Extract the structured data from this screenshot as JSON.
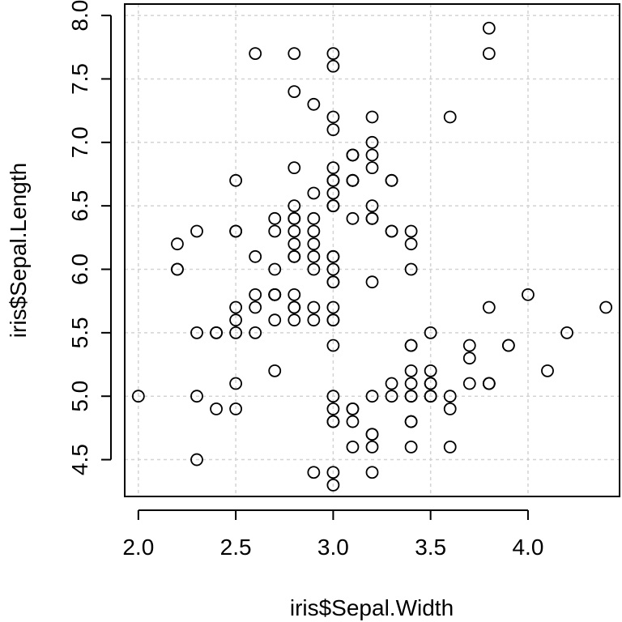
{
  "chart_data": {
    "type": "scatter",
    "title": "",
    "xlabel": "iris$Sepal.Width",
    "ylabel": "iris$Sepal.Length",
    "xlim": [
      1.93,
      4.47
    ],
    "ylim": [
      4.21,
      8.09
    ],
    "x_ticks": [
      "2.0",
      "2.5",
      "3.0",
      "3.5",
      "4.0"
    ],
    "y_ticks": [
      "4.5",
      "5.0",
      "5.5",
      "6.0",
      "6.5",
      "7.0",
      "7.5",
      "8.0"
    ],
    "grid": true,
    "marker": "open-circle",
    "marker_color": "#000000",
    "grid_color": "#d3d3d3",
    "points": [
      [
        3.5,
        5.1
      ],
      [
        3.0,
        4.9
      ],
      [
        3.2,
        4.7
      ],
      [
        3.1,
        4.6
      ],
      [
        3.6,
        5.0
      ],
      [
        3.9,
        5.4
      ],
      [
        3.4,
        4.6
      ],
      [
        3.4,
        5.0
      ],
      [
        2.9,
        4.4
      ],
      [
        3.1,
        4.9
      ],
      [
        3.7,
        5.4
      ],
      [
        3.4,
        4.8
      ],
      [
        3.0,
        4.8
      ],
      [
        3.0,
        4.3
      ],
      [
        4.0,
        5.8
      ],
      [
        4.4,
        5.7
      ],
      [
        3.9,
        5.4
      ],
      [
        3.5,
        5.1
      ],
      [
        3.8,
        5.7
      ],
      [
        3.8,
        5.1
      ],
      [
        3.4,
        5.4
      ],
      [
        3.7,
        5.1
      ],
      [
        3.6,
        4.6
      ],
      [
        3.3,
        5.1
      ],
      [
        3.4,
        4.8
      ],
      [
        3.0,
        5.0
      ],
      [
        3.4,
        5.0
      ],
      [
        3.5,
        5.2
      ],
      [
        3.4,
        5.2
      ],
      [
        3.2,
        4.7
      ],
      [
        3.1,
        4.8
      ],
      [
        3.4,
        5.4
      ],
      [
        4.1,
        5.2
      ],
      [
        4.2,
        5.5
      ],
      [
        3.1,
        4.9
      ],
      [
        3.2,
        5.0
      ],
      [
        3.5,
        5.5
      ],
      [
        3.6,
        4.9
      ],
      [
        3.0,
        4.4
      ],
      [
        3.4,
        5.1
      ],
      [
        3.5,
        5.0
      ],
      [
        2.3,
        4.5
      ],
      [
        3.2,
        4.4
      ],
      [
        3.5,
        5.0
      ],
      [
        3.8,
        5.1
      ],
      [
        3.0,
        4.8
      ],
      [
        3.8,
        5.1
      ],
      [
        3.2,
        4.6
      ],
      [
        3.7,
        5.3
      ],
      [
        3.3,
        5.0
      ],
      [
        3.2,
        7.0
      ],
      [
        3.2,
        6.4
      ],
      [
        3.1,
        6.9
      ],
      [
        2.3,
        5.5
      ],
      [
        2.8,
        6.5
      ],
      [
        2.8,
        5.7
      ],
      [
        3.3,
        6.3
      ],
      [
        2.4,
        4.9
      ],
      [
        2.9,
        6.6
      ],
      [
        2.7,
        5.2
      ],
      [
        2.0,
        5.0
      ],
      [
        3.0,
        5.9
      ],
      [
        2.2,
        6.0
      ],
      [
        2.9,
        6.1
      ],
      [
        2.9,
        5.6
      ],
      [
        3.1,
        6.7
      ],
      [
        3.0,
        5.6
      ],
      [
        2.7,
        5.8
      ],
      [
        2.2,
        6.2
      ],
      [
        2.5,
        5.6
      ],
      [
        3.2,
        5.9
      ],
      [
        2.8,
        6.1
      ],
      [
        2.5,
        6.3
      ],
      [
        2.8,
        6.1
      ],
      [
        2.9,
        6.4
      ],
      [
        3.0,
        6.6
      ],
      [
        2.8,
        6.8
      ],
      [
        3.0,
        6.7
      ],
      [
        2.9,
        6.0
      ],
      [
        2.6,
        5.7
      ],
      [
        2.4,
        5.5
      ],
      [
        2.4,
        5.5
      ],
      [
        2.7,
        5.8
      ],
      [
        2.7,
        6.0
      ],
      [
        3.0,
        5.4
      ],
      [
        3.4,
        6.0
      ],
      [
        3.1,
        6.7
      ],
      [
        2.3,
        6.3
      ],
      [
        3.0,
        5.6
      ],
      [
        2.5,
        5.5
      ],
      [
        2.6,
        5.5
      ],
      [
        3.0,
        6.1
      ],
      [
        2.6,
        5.8
      ],
      [
        2.3,
        5.0
      ],
      [
        2.7,
        5.6
      ],
      [
        3.0,
        5.7
      ],
      [
        2.9,
        5.7
      ],
      [
        2.9,
        6.2
      ],
      [
        2.5,
        5.1
      ],
      [
        2.8,
        5.7
      ],
      [
        3.3,
        6.3
      ],
      [
        2.7,
        5.8
      ],
      [
        3.0,
        7.1
      ],
      [
        2.9,
        6.3
      ],
      [
        3.0,
        6.5
      ],
      [
        3.0,
        7.6
      ],
      [
        2.5,
        4.9
      ],
      [
        2.9,
        7.3
      ],
      [
        2.5,
        6.7
      ],
      [
        3.6,
        7.2
      ],
      [
        3.2,
        6.5
      ],
      [
        2.7,
        6.4
      ],
      [
        3.0,
        6.8
      ],
      [
        2.5,
        5.7
      ],
      [
        2.8,
        5.8
      ],
      [
        3.2,
        6.4
      ],
      [
        3.0,
        6.5
      ],
      [
        3.8,
        7.7
      ],
      [
        2.6,
        7.7
      ],
      [
        2.2,
        6.0
      ],
      [
        3.2,
        6.9
      ],
      [
        2.8,
        5.6
      ],
      [
        2.8,
        7.7
      ],
      [
        2.7,
        6.3
      ],
      [
        3.3,
        6.7
      ],
      [
        3.2,
        7.2
      ],
      [
        2.8,
        6.2
      ],
      [
        3.0,
        6.1
      ],
      [
        2.8,
        6.4
      ],
      [
        3.0,
        7.2
      ],
      [
        2.8,
        7.4
      ],
      [
        3.8,
        7.9
      ],
      [
        2.8,
        6.4
      ],
      [
        2.8,
        6.3
      ],
      [
        2.6,
        6.1
      ],
      [
        3.0,
        7.7
      ],
      [
        3.4,
        6.3
      ],
      [
        3.1,
        6.4
      ],
      [
        3.0,
        6.0
      ],
      [
        3.1,
        6.9
      ],
      [
        3.1,
        6.7
      ],
      [
        3.1,
        6.9
      ],
      [
        2.7,
        5.8
      ],
      [
        3.2,
        6.8
      ],
      [
        3.3,
        6.7
      ],
      [
        3.0,
        6.7
      ],
      [
        2.5,
        6.3
      ],
      [
        3.0,
        6.5
      ],
      [
        3.4,
        6.2
      ],
      [
        3.0,
        5.9
      ]
    ]
  }
}
